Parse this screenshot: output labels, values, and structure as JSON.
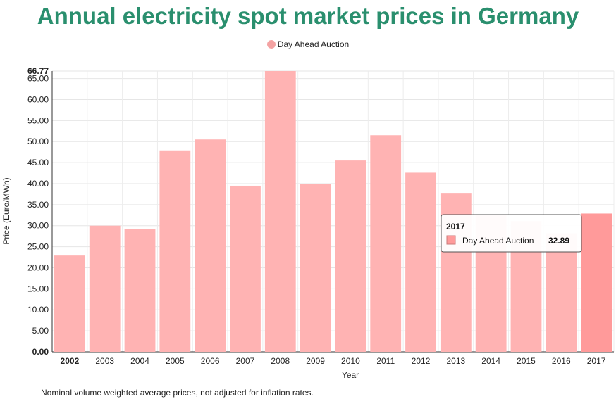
{
  "chart_data": {
    "type": "bar",
    "title": "Annual electricity spot market prices in Germany",
    "xlabel": "Year",
    "ylabel": "Price (Euro/MWh)",
    "categories": [
      "2002",
      "2003",
      "2004",
      "2005",
      "2006",
      "2007",
      "2008",
      "2009",
      "2010",
      "2011",
      "2012",
      "2013",
      "2014",
      "2015",
      "2016",
      "2017"
    ],
    "series": [
      {
        "name": "Day Ahead Auction",
        "values": [
          22.9,
          30.0,
          29.2,
          47.9,
          50.5,
          39.5,
          66.77,
          39.9,
          45.5,
          51.5,
          42.6,
          37.8,
          32.7,
          31.1,
          28.2,
          32.89
        ]
      }
    ],
    "ylim": [
      0,
      66.77
    ],
    "yticks": [
      0,
      5,
      10,
      15,
      20,
      25,
      30,
      35,
      40,
      45,
      50,
      55,
      60,
      65
    ],
    "ytick_labels": [
      "0.00",
      "5.00",
      "10.00",
      "15.00",
      "20.00",
      "25.00",
      "30.00",
      "35.00",
      "40.00",
      "45.00",
      "50.00",
      "55.00",
      "60.00",
      "65.00"
    ],
    "ymax_label": "66.77",
    "grid": true,
    "legend_position": "top-center",
    "highlighted_index": 15,
    "colors": {
      "bar": "#ffb3b3",
      "bar_highlight": "#ff9a9a",
      "legend_swatch": "#f4a3a3",
      "title": "#2a8f6e"
    },
    "tooltip": {
      "title": "2017",
      "series": "Day Ahead Auction",
      "value": "32.89"
    },
    "footnote": "Nominal volume weighted average prices, not adjusted for inflation rates."
  }
}
